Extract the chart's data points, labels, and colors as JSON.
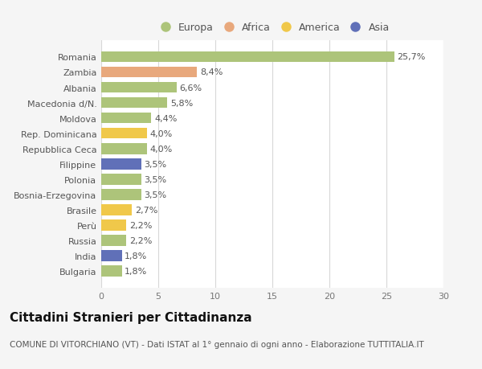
{
  "countries": [
    "Romania",
    "Zambia",
    "Albania",
    "Macedonia d/N.",
    "Moldova",
    "Rep. Dominicana",
    "Repubblica Ceca",
    "Filippine",
    "Polonia",
    "Bosnia-Erzegovina",
    "Brasile",
    "Perù",
    "Russia",
    "India",
    "Bulgaria"
  ],
  "values": [
    25.7,
    8.4,
    6.6,
    5.8,
    4.4,
    4.0,
    4.0,
    3.5,
    3.5,
    3.5,
    2.7,
    2.2,
    2.2,
    1.8,
    1.8
  ],
  "labels": [
    "25,7%",
    "8,4%",
    "6,6%",
    "5,8%",
    "4,4%",
    "4,0%",
    "4,0%",
    "3,5%",
    "3,5%",
    "3,5%",
    "2,7%",
    "2,2%",
    "2,2%",
    "1,8%",
    "1,8%"
  ],
  "continents": [
    "Europa",
    "Africa",
    "Europa",
    "Europa",
    "Europa",
    "America",
    "Europa",
    "Asia",
    "Europa",
    "Europa",
    "America",
    "America",
    "Europa",
    "Asia",
    "Europa"
  ],
  "continent_colors": {
    "Europa": "#adc47a",
    "Africa": "#e8a87c",
    "America": "#f0c84a",
    "Asia": "#6070b8"
  },
  "legend_order": [
    "Europa",
    "Africa",
    "America",
    "Asia"
  ],
  "xlim": [
    0,
    30
  ],
  "xticks": [
    0,
    5,
    10,
    15,
    20,
    25,
    30
  ],
  "title": "Cittadini Stranieri per Cittadinanza",
  "subtitle": "COMUNE DI VITORCHIANO (VT) - Dati ISTAT al 1° gennaio di ogni anno - Elaborazione TUTTITALIA.IT",
  "background_color": "#f5f5f5",
  "bar_area_color": "#ffffff",
  "grid_color": "#d8d8d8",
  "title_fontsize": 11,
  "subtitle_fontsize": 7.5,
  "label_fontsize": 8,
  "tick_fontsize": 8,
  "legend_fontsize": 9
}
